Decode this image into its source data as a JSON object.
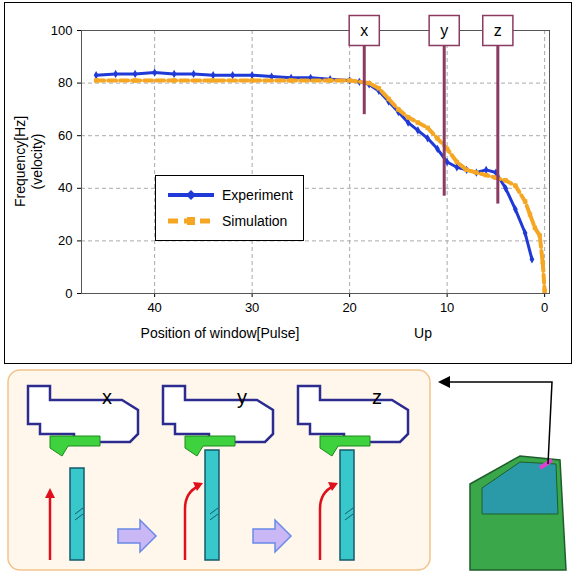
{
  "chart_data": {
    "type": "line",
    "y_label": [
      "Frequency[Hz]",
      "(velocity)"
    ],
    "x_label": "Position of window[Pulse]",
    "x_note": "Up",
    "xlim": [
      47.5,
      -0.5
    ],
    "xticks": [
      40,
      30,
      20,
      10,
      0
    ],
    "ylim": [
      0,
      100
    ],
    "yticks": [
      0,
      20,
      40,
      60,
      80,
      100
    ],
    "grid": true,
    "legend": "lower left",
    "series": [
      {
        "name": "Experiment",
        "color": "#1f3ad6",
        "line_style": "solid",
        "marker": "diamond",
        "x": [
          46,
          44,
          42,
          40,
          38,
          36,
          34,
          32,
          30,
          28,
          26,
          24,
          22,
          20,
          19,
          18,
          17,
          16,
          15,
          14,
          13,
          12,
          11,
          10,
          9,
          8,
          7,
          6,
          5,
          4,
          3,
          2,
          1.3
        ],
        "values": [
          83,
          83.5,
          83.5,
          84,
          83.5,
          83.5,
          83,
          83,
          83,
          82.5,
          82,
          82,
          81.5,
          81,
          80.5,
          79.5,
          77,
          73,
          69,
          65,
          62,
          59,
          55,
          50,
          48,
          47,
          46,
          47,
          46,
          40,
          32,
          23,
          13
        ]
      },
      {
        "name": "Simulation",
        "color": "#f5a623",
        "line_style": "dashed",
        "marker": "square",
        "x": [
          46,
          42,
          38,
          34,
          30,
          26,
          22,
          20,
          18,
          17,
          16,
          15,
          14,
          13,
          12,
          11,
          10,
          9,
          8,
          7,
          6,
          5,
          4,
          3,
          2,
          1.5,
          1,
          0.5,
          0.2,
          0
        ],
        "values": [
          81,
          81,
          81,
          81,
          81,
          81,
          81,
          81,
          80,
          78,
          74,
          70,
          67,
          65,
          63,
          59,
          55,
          50,
          47,
          46,
          45,
          44,
          43,
          41,
          35,
          30,
          25,
          22,
          12,
          1
        ]
      }
    ],
    "annotations": [
      {
        "text": "x",
        "x": 18.5,
        "y": 68
      },
      {
        "text": "y",
        "x": 10.3,
        "y": 37
      },
      {
        "text": "z",
        "x": 4.8,
        "y": 34
      }
    ]
  },
  "diagram": {
    "labels": [
      "x",
      "y",
      "z"
    ]
  }
}
